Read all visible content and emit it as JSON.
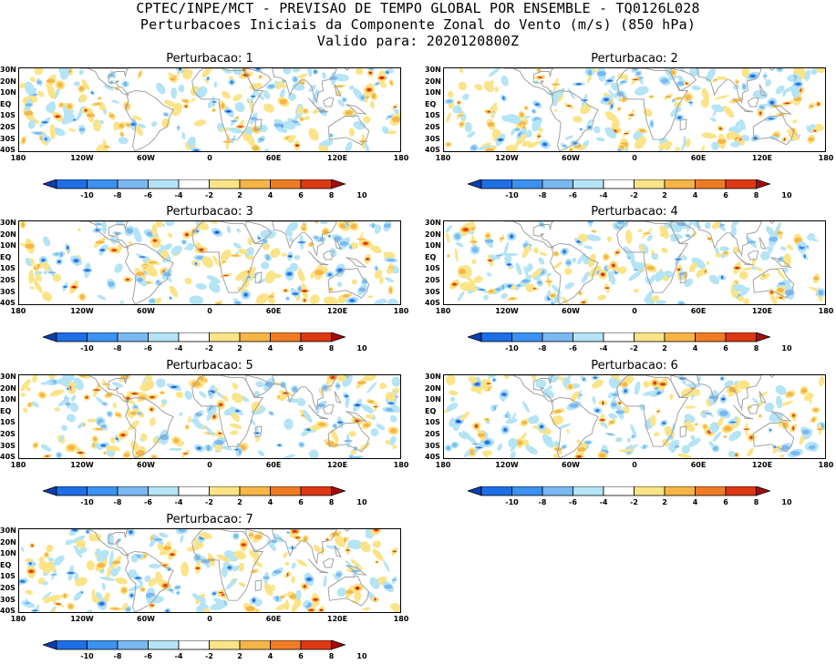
{
  "header": {
    "line1": "CPTEC/INPE/MCT - PREVISAO DE TEMPO GLOBAL POR ENSEMBLE - TQ0126L028",
    "line2": "Perturbacoes Iniciais da Componente Zonal do Vento (m/s) (850 hPa)",
    "line3": "Valido para: 2020120800Z"
  },
  "panels": [
    {
      "title": "Perturbacao: 1"
    },
    {
      "title": "Perturbacao: 2"
    },
    {
      "title": "Perturbacao: 3"
    },
    {
      "title": "Perturbacao: 4"
    },
    {
      "title": "Perturbacao: 5"
    },
    {
      "title": "Perturbacao: 6"
    },
    {
      "title": "Perturbacao: 7"
    }
  ],
  "axes": {
    "lat_labels": [
      "30N",
      "20N",
      "10N",
      "EQ",
      "10S",
      "20S",
      "30S",
      "40S"
    ],
    "lon_labels": [
      "180",
      "120W",
      "60W",
      "0",
      "60E",
      "120E",
      "180"
    ]
  },
  "colorbar": {
    "labels": [
      "-10",
      "-8",
      "-6",
      "-4",
      "-2",
      "2",
      "4",
      "6",
      "8",
      "10"
    ],
    "colors": [
      "#0a3fb0",
      "#1e6ee6",
      "#3b92f0",
      "#7ab8f2",
      "#b4e4f5",
      "#ffffff",
      "#fbe488",
      "#f7b547",
      "#ef7c24",
      "#dd3814",
      "#a50c0c"
    ]
  },
  "map_colors": {
    "land_outline": "#a0a0a0",
    "frame": "#000000"
  }
}
